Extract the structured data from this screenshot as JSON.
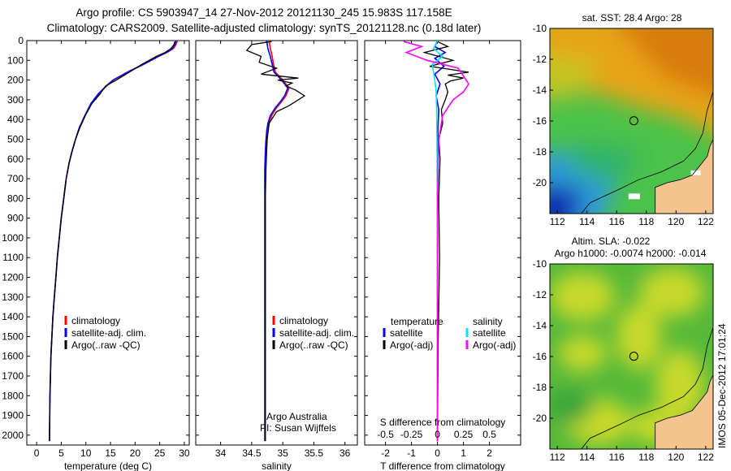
{
  "header": {
    "line1": "Argo profile: CS 5903947_14 27-Nov-2012 20121130_245 15.983S 117.158E",
    "line2": "Climatology: CARS2009. Satellite-adjusted climatology: synTS_20121128.nc (0.18d later)"
  },
  "colors": {
    "climatology": "#ff0000",
    "satellite": "#0000ff",
    "argo": "#000000",
    "satellite_s": "#00e5ff",
    "argo_s": "#ff00ff",
    "land": "#f5c38e"
  },
  "chart_data": [
    {
      "type": "line",
      "id": "temperature",
      "xlabel": "temperature (deg C)",
      "ylabel": "",
      "xlim": [
        -2,
        31
      ],
      "ylim": [
        2050,
        0
      ],
      "xticks": [
        0,
        5,
        10,
        15,
        20,
        25,
        30
      ],
      "yticks": [
        0,
        100,
        200,
        300,
        400,
        500,
        600,
        700,
        800,
        900,
        1000,
        1100,
        1200,
        1300,
        1400,
        1500,
        1600,
        1700,
        1800,
        1900,
        2000
      ],
      "legend": [
        "climatology",
        "satellite-adj. clim.",
        "Argo(..raw -QC)"
      ],
      "series": [
        {
          "name": "climatology",
          "color": "#ff0000",
          "x": [
            28.6,
            28.3,
            27.8,
            26.5,
            24.8,
            21.8,
            18.5,
            15.6,
            14.2,
            12.6,
            11.1,
            9.8,
            8.7,
            7.9,
            7.2,
            6.6,
            6.0,
            5.5,
            5.0,
            4.6,
            4.2,
            3.9,
            3.6,
            3.3,
            3.1,
            2.9,
            2.7,
            2.6
          ],
          "depth": [
            0,
            20,
            40,
            60,
            80,
            120,
            160,
            200,
            230,
            270,
            320,
            380,
            440,
            500,
            560,
            620,
            700,
            800,
            900,
            1000,
            1100,
            1200,
            1300,
            1400,
            1500,
            1600,
            1800,
            2030
          ]
        },
        {
          "name": "satellite-adj. clim.",
          "color": "#0000ff",
          "x": [
            28.3,
            28.1,
            27.6,
            26.4,
            24.7,
            21.7,
            18.4,
            15.5,
            14.1,
            12.5,
            11.0,
            9.8,
            8.7,
            7.9,
            7.2,
            6.6,
            6.0,
            5.5,
            5.0,
            4.6,
            4.2,
            3.9,
            3.6,
            3.3,
            3.1,
            2.9,
            2.7,
            2.6
          ],
          "depth": [
            0,
            20,
            40,
            60,
            80,
            120,
            160,
            200,
            230,
            270,
            320,
            380,
            440,
            500,
            560,
            620,
            700,
            800,
            900,
            1000,
            1100,
            1200,
            1300,
            1400,
            1500,
            1600,
            1800,
            2030
          ]
        },
        {
          "name": "Argo(..raw -QC)",
          "color": "#000000",
          "x": [
            28.1,
            27.9,
            27.3,
            26.1,
            24.3,
            21.4,
            18.8,
            16.2,
            14.0,
            12.9,
            11.2,
            9.9,
            8.8,
            7.9,
            7.2,
            6.6,
            6.0,
            5.5,
            5.0,
            4.6,
            4.2,
            3.9,
            3.6,
            3.3,
            3.1,
            2.9,
            2.7,
            2.6
          ],
          "depth": [
            5,
            20,
            40,
            60,
            80,
            120,
            160,
            200,
            230,
            270,
            320,
            380,
            440,
            500,
            560,
            620,
            700,
            800,
            900,
            1000,
            1100,
            1200,
            1300,
            1400,
            1500,
            1600,
            1800,
            2030
          ]
        }
      ]
    },
    {
      "type": "line",
      "id": "salinity",
      "xlabel": "salinity",
      "ylabel": "",
      "xlim": [
        33.6,
        36.2
      ],
      "ylim": [
        2050,
        0
      ],
      "xticks": [
        34,
        34.5,
        35,
        35.5,
        36
      ],
      "legend": [
        "climatology",
        "satellite-adj. clim.",
        "Argo(..raw -QC)"
      ],
      "annotation": [
        "Argo Australia",
        "PI: Susan Wijffels"
      ],
      "series": [
        {
          "name": "climatology",
          "color": "#ff0000",
          "x": [
            34.78,
            34.8,
            34.83,
            34.85,
            34.88,
            35.0,
            35.1,
            35.05,
            34.98,
            34.9,
            34.82,
            34.78,
            34.76,
            34.74,
            34.73,
            34.72,
            34.72,
            34.72,
            34.72,
            34.72,
            34.72,
            34.72,
            34.72,
            34.72,
            34.72
          ],
          "depth": [
            0,
            40,
            80,
            120,
            160,
            200,
            240,
            280,
            310,
            340,
            380,
            420,
            460,
            500,
            560,
            650,
            800,
            1000,
            1200,
            1400,
            1600,
            1800,
            1900,
            2000,
            2030
          ]
        },
        {
          "name": "satellite-adj. clim.",
          "color": "#0000ff",
          "x": [
            34.74,
            34.76,
            34.8,
            34.83,
            34.86,
            34.98,
            35.08,
            35.03,
            34.96,
            34.88,
            34.8,
            34.76,
            34.74,
            34.73,
            34.72,
            34.71,
            34.71,
            34.71,
            34.71,
            34.71,
            34.71,
            34.71,
            34.71,
            34.71,
            34.71
          ],
          "depth": [
            0,
            40,
            80,
            120,
            160,
            200,
            240,
            280,
            310,
            340,
            380,
            420,
            460,
            500,
            560,
            650,
            800,
            1000,
            1200,
            1400,
            1600,
            1800,
            1900,
            2000,
            2030
          ]
        },
        {
          "name": "Argo(..raw -QC)",
          "color": "#000000",
          "x": [
            34.82,
            34.5,
            34.42,
            34.65,
            34.62,
            34.9,
            34.65,
            34.95,
            35.25,
            34.92,
            35.15,
            35.05,
            35.2,
            35.35,
            35.1,
            34.9,
            34.78,
            34.75,
            34.74,
            34.73,
            34.72,
            34.72,
            34.72,
            34.72,
            34.72,
            34.72
          ],
          "depth": [
            5,
            20,
            50,
            80,
            110,
            140,
            170,
            180,
            190,
            200,
            215,
            230,
            250,
            280,
            330,
            360,
            420,
            500,
            560,
            650,
            800,
            1000,
            1400,
            1800,
            2000,
            2030
          ]
        }
      ]
    },
    {
      "type": "line",
      "id": "difference",
      "xlabel": "T difference from climatology",
      "xlabel2": "S difference from climatology",
      "xlim": [
        -2.8,
        3.2
      ],
      "ylim": [
        2050,
        0
      ],
      "xticks": [
        -2,
        -1,
        0,
        1,
        2
      ],
      "xticks_s": [
        "-0.5",
        "-0.25",
        "0",
        "0.25",
        "0.5"
      ],
      "legend_titles": [
        "temperature",
        "salinity"
      ],
      "legend": [
        "satellite",
        "Argo(-adj)",
        "satellite",
        "Argo(-adj)"
      ],
      "series": [
        {
          "name": "satellite",
          "color": "#0000ff",
          "x": [
            0.0,
            -0.1,
            0.3,
            -0.1,
            0.25,
            -0.1,
            0.1,
            -0.05,
            0.05,
            0.02,
            0.01,
            0.0,
            0.0,
            0.0
          ],
          "depth": [
            0,
            30,
            60,
            90,
            130,
            170,
            220,
            280,
            350,
            450,
            600,
            900,
            1400,
            2030
          ]
        },
        {
          "name": "Argo(-adj)",
          "color": "#000000",
          "x": [
            0.0,
            0.4,
            -0.5,
            0.6,
            -0.3,
            1.2,
            0.4,
            1.0,
            0.5,
            0.3,
            0.4,
            0.3,
            0.15,
            0.2,
            0.05,
            0.1,
            0.05,
            0.08,
            0.03,
            0.0
          ],
          "depth": [
            5,
            30,
            60,
            100,
            130,
            160,
            175,
            190,
            205,
            220,
            260,
            300,
            350,
            420,
            500,
            600,
            800,
            1100,
            1500,
            2030
          ]
        },
        {
          "name": "satellite",
          "color": "#00e5ff",
          "x": [
            0.0,
            -0.15,
            0.2,
            -0.2,
            -0.15,
            -0.1,
            -0.05,
            -0.03,
            -0.02,
            -0.01,
            0.0,
            0.0
          ],
          "depth": [
            0,
            40,
            80,
            120,
            160,
            200,
            260,
            350,
            500,
            800,
            1400,
            2030
          ]
        },
        {
          "name": "Argo(-adj)",
          "color": "#ff00ff",
          "x": [
            -1.3,
            -0.6,
            -1.2,
            -0.4,
            0.8,
            1.0,
            1.1,
            1.2,
            1.0,
            0.6,
            0.2,
            0.05,
            0.0,
            0.0
          ],
          "depth": [
            5,
            30,
            60,
            100,
            140,
            180,
            200,
            220,
            260,
            300,
            380,
            500,
            800,
            2030
          ]
        }
      ]
    },
    {
      "type": "heatmap",
      "id": "sst_map",
      "title": "sat. SST: 28.4  Argo: 28",
      "xlim": [
        111.5,
        122.5
      ],
      "ylim": [
        -22,
        -10
      ],
      "xticks": [
        112,
        114,
        116,
        118,
        120,
        122
      ],
      "yticks": [
        -10,
        -12,
        -14,
        -16,
        -18,
        -20
      ],
      "marker": [
        117.158,
        -15.983
      ]
    },
    {
      "type": "heatmap",
      "id": "sla_map",
      "title_line1": "Altim. SLA: -0.022",
      "title_line2": "Argo h1000: -0.0074  h2000: -0.014",
      "xlim": [
        111.5,
        122.5
      ],
      "ylim": [
        -22,
        -10
      ],
      "xticks": [
        112,
        114,
        116,
        118,
        120,
        122
      ],
      "yticks": [
        -10,
        -12,
        -14,
        -16,
        -18,
        -20
      ],
      "marker": [
        117.158,
        -15.983
      ]
    }
  ],
  "footer": {
    "stamp": "IMOS 05-Dec-2012 17:01:24"
  }
}
